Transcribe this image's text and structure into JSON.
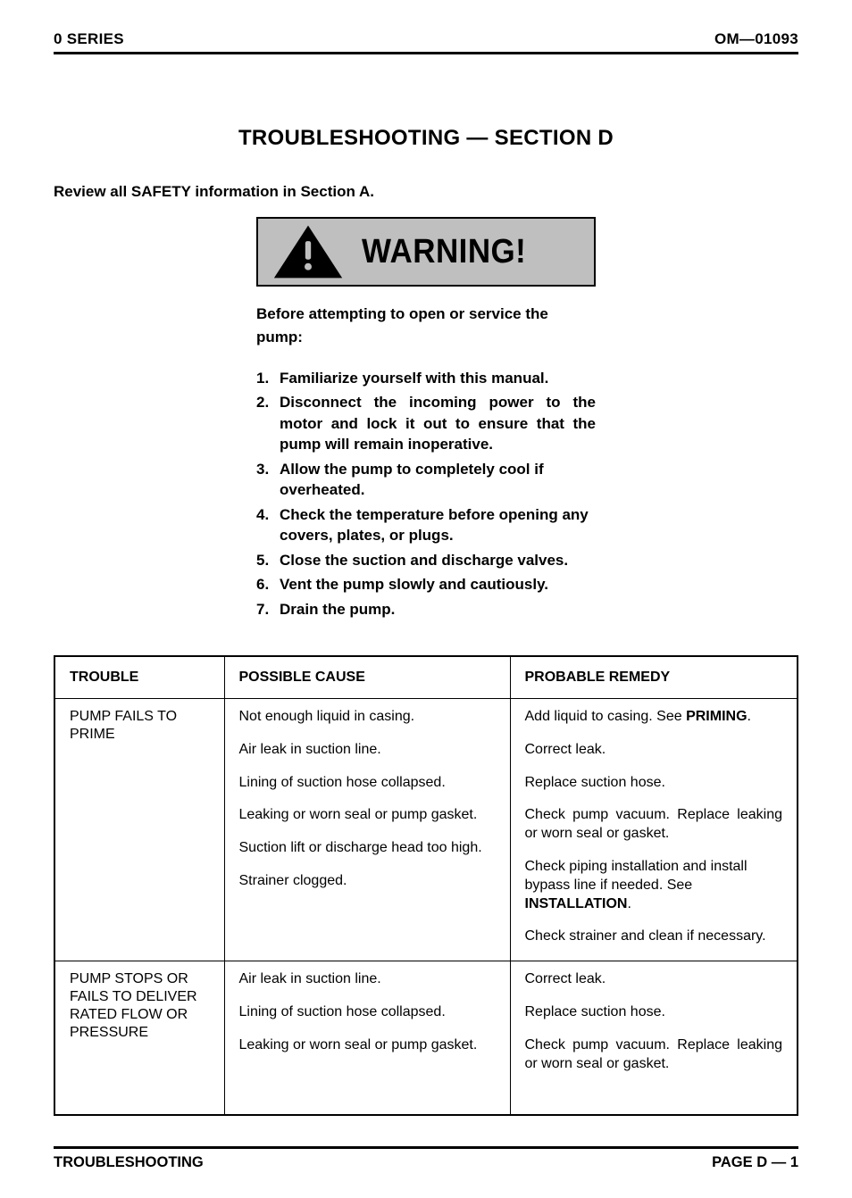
{
  "header": {
    "left": "0 SERIES",
    "right": "OM—01093"
  },
  "title": "TROUBLESHOOTING — SECTION D",
  "review_line": "Review all SAFETY information in Section A.",
  "warning": {
    "banner_text": "WARNING!",
    "banner_bg": "#bfbfbf",
    "icon_name": "warning-triangle",
    "intro": "Before attempting to open or service the pump:",
    "items": [
      {
        "n": "1.",
        "text": "Familiarize yourself with this manual.",
        "justify": false
      },
      {
        "n": "2.",
        "text": "Disconnect the incoming power to the motor and lock it out to ensure that the pump will remain inoperative.",
        "justify": true
      },
      {
        "n": "3.",
        "text": "Allow the pump to completely cool if overheated.",
        "justify": false
      },
      {
        "n": "4.",
        "text": "Check the temperature before opening any covers, plates, or plugs.",
        "justify": false
      },
      {
        "n": "5.",
        "text": "Close the suction and discharge valves.",
        "justify": true
      },
      {
        "n": "6.",
        "text": "Vent the pump slowly and cautiously.",
        "justify": false
      },
      {
        "n": "7.",
        "text": "Drain the pump.",
        "justify": false
      }
    ]
  },
  "table": {
    "headers": {
      "trouble": "TROUBLE",
      "cause": "POSSIBLE CAUSE",
      "remedy": "PROBABLE REMEDY"
    },
    "sections": [
      {
        "trouble": "PUMP FAILS TO PRIME",
        "rows": [
          {
            "cause": "Not enough liquid in casing.",
            "remedy_pre": "Add liquid to casing. See ",
            "remedy_bold": "PRIMING",
            "remedy_post": ".",
            "remedy_justify": true
          },
          {
            "cause": "Air leak in suction line.",
            "remedy_pre": "Correct leak.",
            "remedy_bold": "",
            "remedy_post": ""
          },
          {
            "cause": "Lining of suction hose collapsed.",
            "remedy_pre": "Replace suction hose.",
            "remedy_bold": "",
            "remedy_post": ""
          },
          {
            "cause": "Leaking or worn seal or pump gasket.",
            "remedy_pre": "Check pump vacuum. Replace leaking or worn seal or gasket.",
            "remedy_bold": "",
            "remedy_post": "",
            "remedy_justify": true
          },
          {
            "cause": "Suction lift or discharge head too high.",
            "remedy_pre": "Check piping installation and install bypass line if needed. See ",
            "remedy_bold": "INSTALLATION",
            "remedy_post": "."
          },
          {
            "cause": "Strainer clogged.",
            "remedy_pre": "Check strainer and clean if necessary.",
            "remedy_bold": "",
            "remedy_post": ""
          }
        ]
      },
      {
        "trouble": "PUMP STOPS OR FAILS TO DELIVER RATED FLOW OR PRESSURE",
        "rows": [
          {
            "cause": "Air leak in suction line.",
            "remedy_pre": "Correct leak.",
            "remedy_bold": "",
            "remedy_post": ""
          },
          {
            "cause": "Lining of suction hose collapsed.",
            "remedy_pre": "Replace suction hose.",
            "remedy_bold": "",
            "remedy_post": ""
          },
          {
            "cause": "Leaking or worn seal or pump gasket.",
            "remedy_pre": "Check pump vacuum. Replace leaking or worn seal or gasket.",
            "remedy_bold": "",
            "remedy_post": "",
            "remedy_justify": true
          }
        ]
      }
    ]
  },
  "footer": {
    "left": "TROUBLESHOOTING",
    "right": "PAGE D — 1"
  },
  "colors": {
    "text": "#000000",
    "background": "#ffffff",
    "rule": "#000000"
  }
}
